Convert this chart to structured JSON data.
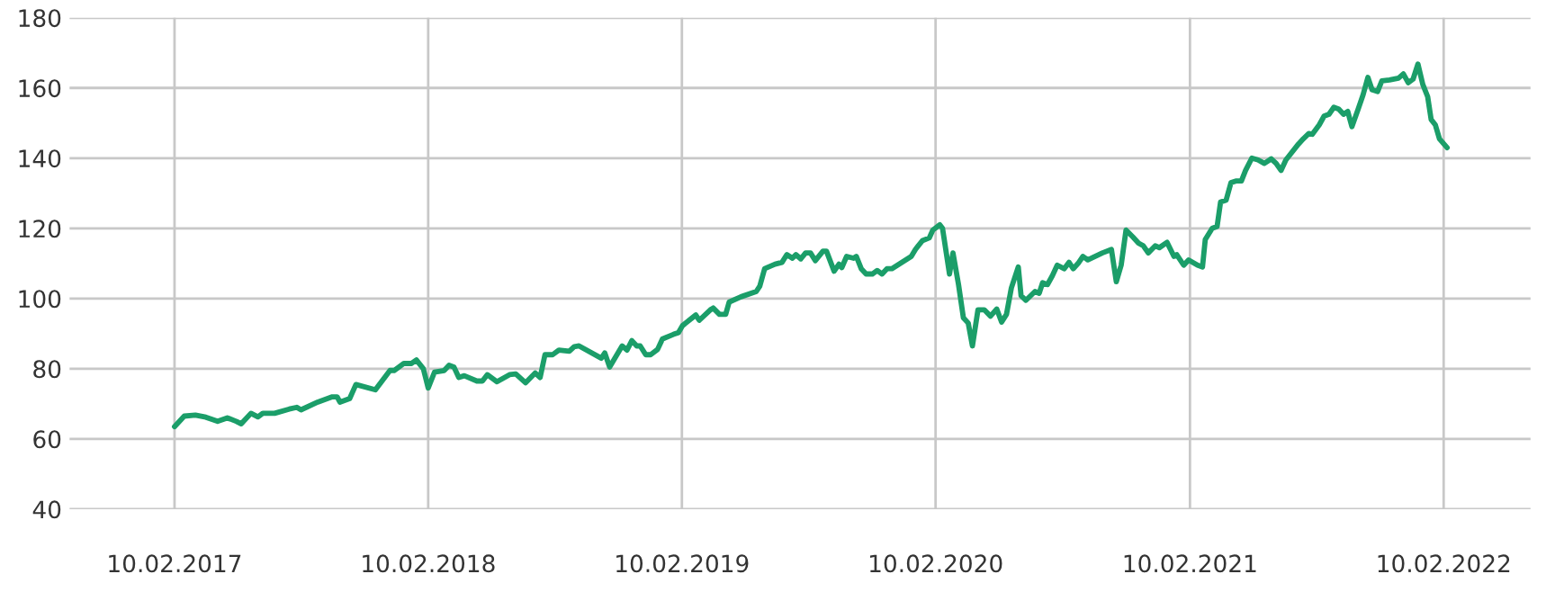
{
  "chart_data": {
    "type": "line",
    "color": "#1b9e69",
    "x": [
      "2017-02-10",
      "2017-02-24",
      "2017-03-12",
      "2017-03-27",
      "2017-04-13",
      "2017-04-27",
      "2017-05-10",
      "2017-05-17",
      "2017-05-31",
      "2017-06-10",
      "2017-06-17",
      "2017-07-04",
      "2017-07-25",
      "2017-08-05",
      "2017-08-11",
      "2017-09-04",
      "2017-09-25",
      "2017-10-02",
      "2017-10-06",
      "2017-10-20",
      "2017-10-29",
      "2017-11-26",
      "2017-12-17",
      "2017-12-23",
      "2018-01-06",
      "2018-01-17",
      "2018-01-24",
      "2018-02-03",
      "2018-02-10",
      "2018-02-19",
      "2018-03-05",
      "2018-03-12",
      "2018-03-19",
      "2018-03-26",
      "2018-04-03",
      "2018-04-21",
      "2018-04-29",
      "2018-05-06",
      "2018-05-20",
      "2018-06-07",
      "2018-06-16",
      "2018-06-30",
      "2018-07-14",
      "2018-07-21",
      "2018-07-28",
      "2018-08-08",
      "2018-08-17",
      "2018-09-01",
      "2018-09-08",
      "2018-09-15",
      "2018-10-17",
      "2018-10-22",
      "2018-10-29",
      "2018-11-16",
      "2018-11-23",
      "2018-11-30",
      "2018-12-07",
      "2018-12-12",
      "2018-12-20",
      "2018-12-27",
      "2019-01-06",
      "2019-01-13",
      "2019-01-29",
      "2019-02-05",
      "2019-02-11",
      "2019-03-02",
      "2019-03-07",
      "2019-03-23",
      "2019-03-27",
      "2019-04-05",
      "2019-04-14",
      "2019-04-19",
      "2019-05-06",
      "2019-05-28",
      "2019-06-02",
      "2019-06-09",
      "2019-06-24",
      "2019-07-04",
      "2019-07-11",
      "2019-07-19",
      "2019-07-24",
      "2019-07-31",
      "2019-08-07",
      "2019-08-14",
      "2019-08-21",
      "2019-09-01",
      "2019-09-06",
      "2019-09-17",
      "2019-09-24",
      "2019-09-28",
      "2019-10-05",
      "2019-10-15",
      "2019-10-19",
      "2019-10-26",
      "2019-11-02",
      "2019-11-11",
      "2019-11-18",
      "2019-11-25",
      "2019-12-02",
      "2019-12-09",
      "2020-01-06",
      "2020-01-12",
      "2020-01-22",
      "2020-02-01",
      "2020-02-06",
      "2020-02-16",
      "2020-02-20",
      "2020-03-01",
      "2020-03-06",
      "2020-03-14",
      "2020-03-21",
      "2020-03-28",
      "2020-04-03",
      "2020-04-11",
      "2020-04-20",
      "2020-04-29",
      "2020-05-08",
      "2020-05-15",
      "2020-05-22",
      "2020-05-29",
      "2020-06-08",
      "2020-06-12",
      "2020-06-19",
      "2020-07-02",
      "2020-07-08",
      "2020-07-13",
      "2020-07-20",
      "2020-07-27",
      "2020-08-03",
      "2020-08-13",
      "2020-08-20",
      "2020-08-26",
      "2020-09-02",
      "2020-09-09",
      "2020-09-16",
      "2020-10-07",
      "2020-10-20",
      "2020-10-27",
      "2020-11-03",
      "2020-11-10",
      "2020-11-20",
      "2020-11-28",
      "2020-12-05",
      "2020-12-12",
      "2020-12-22",
      "2020-12-28",
      "2021-01-08",
      "2021-01-18",
      "2021-01-22",
      "2021-02-01",
      "2021-02-08",
      "2021-02-21",
      "2021-02-28",
      "2021-03-04",
      "2021-03-14",
      "2021-03-21",
      "2021-03-26",
      "2021-04-03",
      "2021-04-10",
      "2021-04-17",
      "2021-04-25",
      "2021-05-01",
      "2021-05-10",
      "2021-05-19",
      "2021-05-28",
      "2021-06-07",
      "2021-06-14",
      "2021-06-21",
      "2021-06-28",
      "2021-07-16",
      "2021-07-23",
      "2021-07-31",
      "2021-08-05",
      "2021-08-15",
      "2021-08-22",
      "2021-08-29",
      "2021-09-05",
      "2021-09-12",
      "2021-09-19",
      "2021-09-25",
      "2021-10-01",
      "2021-10-10",
      "2021-10-17",
      "2021-10-24",
      "2021-10-30",
      "2021-11-07",
      "2021-11-13",
      "2021-11-24",
      "2021-12-07",
      "2021-12-14",
      "2021-12-21",
      "2021-12-28",
      "2022-01-04",
      "2022-01-11",
      "2022-01-18",
      "2022-01-23",
      "2022-01-29",
      "2022-02-04",
      "2022-02-15"
    ],
    "values": [
      63.5,
      66.5,
      66.8,
      66.2,
      65,
      66,
      65,
      64.3,
      67.3,
      66.3,
      67.3,
      67.3,
      68.5,
      69,
      68.3,
      70.5,
      72,
      72,
      70.5,
      71.5,
      75.5,
      74,
      79.5,
      79.5,
      81.5,
      81.5,
      82.5,
      80,
      74.5,
      79,
      79.5,
      81,
      80.5,
      77.5,
      78,
      76.5,
      76.5,
      78.3,
      76.3,
      78.3,
      78.5,
      76,
      78.8,
      77.5,
      84,
      84,
      85.3,
      85,
      86.3,
      86.5,
      83,
      84.5,
      80.5,
      86.5,
      85.3,
      88,
      86.5,
      86.5,
      84,
      84,
      85.5,
      88.5,
      89.8,
      90.3,
      92.3,
      95.3,
      93.8,
      96.8,
      97.3,
      95.5,
      95.5,
      99,
      100.5,
      102,
      103.5,
      108.5,
      109.8,
      110.3,
      112.5,
      111.5,
      112.5,
      111.3,
      113,
      113,
      110.8,
      113.5,
      113.5,
      107.8,
      109.8,
      108.8,
      112,
      111.5,
      112,
      108.5,
      107,
      107,
      108,
      107,
      108.5,
      108.5,
      112,
      114,
      116.5,
      117.3,
      119.5,
      121,
      120,
      107,
      113,
      104,
      94.5,
      93,
      86.5,
      96.8,
      96.8,
      95,
      97,
      93.3,
      95.5,
      103,
      109,
      100.8,
      99.5,
      102,
      101.5,
      104.5,
      104,
      106.5,
      109.5,
      108.5,
      110.3,
      108.5,
      110,
      112,
      111,
      113,
      114,
      104.8,
      109.5,
      119.5,
      117.5,
      115.8,
      115,
      113,
      115,
      114.5,
      116,
      112,
      112.5,
      109.5,
      111,
      109.5,
      109,
      116.8,
      120,
      120.5,
      127.5,
      128,
      133,
      133.5,
      133.5,
      136.5,
      140,
      139.5,
      138.5,
      139.8,
      138.5,
      136.5,
      139.5,
      144,
      145.5,
      147,
      146.8,
      149.5,
      152,
      152.5,
      154.5,
      154,
      152.5,
      153.3,
      149,
      154,
      158,
      163,
      159.5,
      159,
      162,
      162.3,
      162.8,
      164,
      161.5,
      162.5,
      166.8,
      161,
      157.5,
      151,
      149.5,
      145.5,
      143
    ],
    "xlim": [
      "2016-09-12",
      "2022-06-15"
    ],
    "xticks": [
      {
        "value": "2017-02-10",
        "label": "10.02.2017"
      },
      {
        "value": "2018-02-10",
        "label": "10.02.2018"
      },
      {
        "value": "2019-02-10",
        "label": "10.02.2019"
      },
      {
        "value": "2020-02-10",
        "label": "10.02.2020"
      },
      {
        "value": "2021-02-10",
        "label": "10.02.2021"
      },
      {
        "value": "2022-02-10",
        "label": "10.02.2022"
      }
    ],
    "ylim": [
      40,
      180
    ],
    "yticks": [
      40,
      60,
      80,
      100,
      120,
      140,
      160,
      180
    ],
    "grid": true,
    "marker": "none",
    "line_style": "solid"
  }
}
